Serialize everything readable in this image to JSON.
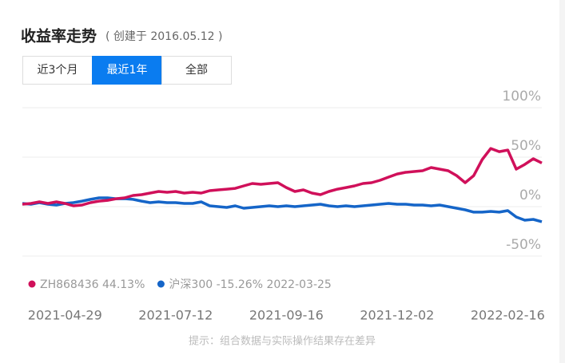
{
  "header": {
    "title": "收益率走势",
    "subtitle": "( 创建于 2016.05.12 )"
  },
  "tabs": [
    "近3个月",
    "最近1年",
    "全部"
  ],
  "footer": "提示：组合数据与实际操作结果存在差异",
  "chart_data": {
    "type": "line",
    "categories": [
      null,
      null,
      null,
      null,
      null,
      "2021-04-29",
      null,
      null,
      null,
      null,
      null,
      null,
      null,
      null,
      null,
      null,
      null,
      null,
      "2021-07-12",
      null,
      null,
      null,
      null,
      null,
      null,
      null,
      null,
      null,
      null,
      null,
      null,
      "2021-09-16",
      null,
      null,
      null,
      null,
      null,
      null,
      null,
      null,
      null,
      null,
      null,
      null,
      "2021-12-02",
      null,
      null,
      null,
      null,
      null,
      null,
      null,
      null,
      null,
      null,
      null,
      null,
      "2022-02-16",
      null,
      null,
      null,
      null
    ],
    "series": [
      {
        "name": "ZH868436 44.13%",
        "color": "#d0105a",
        "values": [
          2.4,
          3.2,
          4.8,
          3.2,
          4.8,
          3.2,
          0.8,
          1.6,
          4,
          5.6,
          6.4,
          8,
          8.9,
          11.3,
          12.1,
          13.7,
          15.3,
          14.5,
          15.3,
          13.7,
          14.5,
          13.7,
          16.1,
          16.9,
          17.7,
          18.5,
          21,
          23.4,
          22.6,
          23.4,
          24.2,
          19.3,
          15.3,
          16.9,
          13.7,
          12.1,
          15.3,
          17.7,
          19.3,
          21,
          23.4,
          24.2,
          26.6,
          29.8,
          33,
          34.7,
          35.5,
          36.3,
          39.5,
          37.9,
          36.3,
          31.4,
          24.2,
          31.4,
          47.6,
          58.8,
          55.6,
          57.2,
          37.9,
          42.7,
          48.4,
          44.13
        ]
      },
      {
        "name": "沪深300 -15.26% 2022-03-25",
        "color": "#1565c8",
        "values": [
          3.2,
          2.4,
          4,
          2.4,
          1.6,
          3.2,
          4,
          5.6,
          7.3,
          8.9,
          8.9,
          8,
          8.1,
          7.3,
          5.6,
          4,
          4.8,
          4,
          4,
          3.2,
          3.2,
          4.8,
          0.8,
          0,
          -0.8,
          0.8,
          -1.6,
          -0.8,
          0,
          0.8,
          0,
          0.8,
          0,
          0.8,
          1.6,
          2.4,
          0.8,
          0,
          0.8,
          0,
          0.8,
          1.6,
          2.4,
          3.2,
          2.4,
          2.4,
          1.6,
          1.6,
          0.8,
          1.6,
          0,
          -1.6,
          -3.2,
          -5.6,
          -5.6,
          -4.8,
          -5.6,
          -4,
          -10.5,
          -13.7,
          -12.9,
          -15.26
        ]
      }
    ],
    "ylim": [
      -50,
      100
    ],
    "yticks": [
      {
        "value": -50,
        "label": "-50%"
      },
      {
        "value": 0,
        "label": "0%"
      },
      {
        "value": 50,
        "label": "50%"
      },
      {
        "value": 100,
        "label": "100%"
      }
    ],
    "grid": true
  }
}
